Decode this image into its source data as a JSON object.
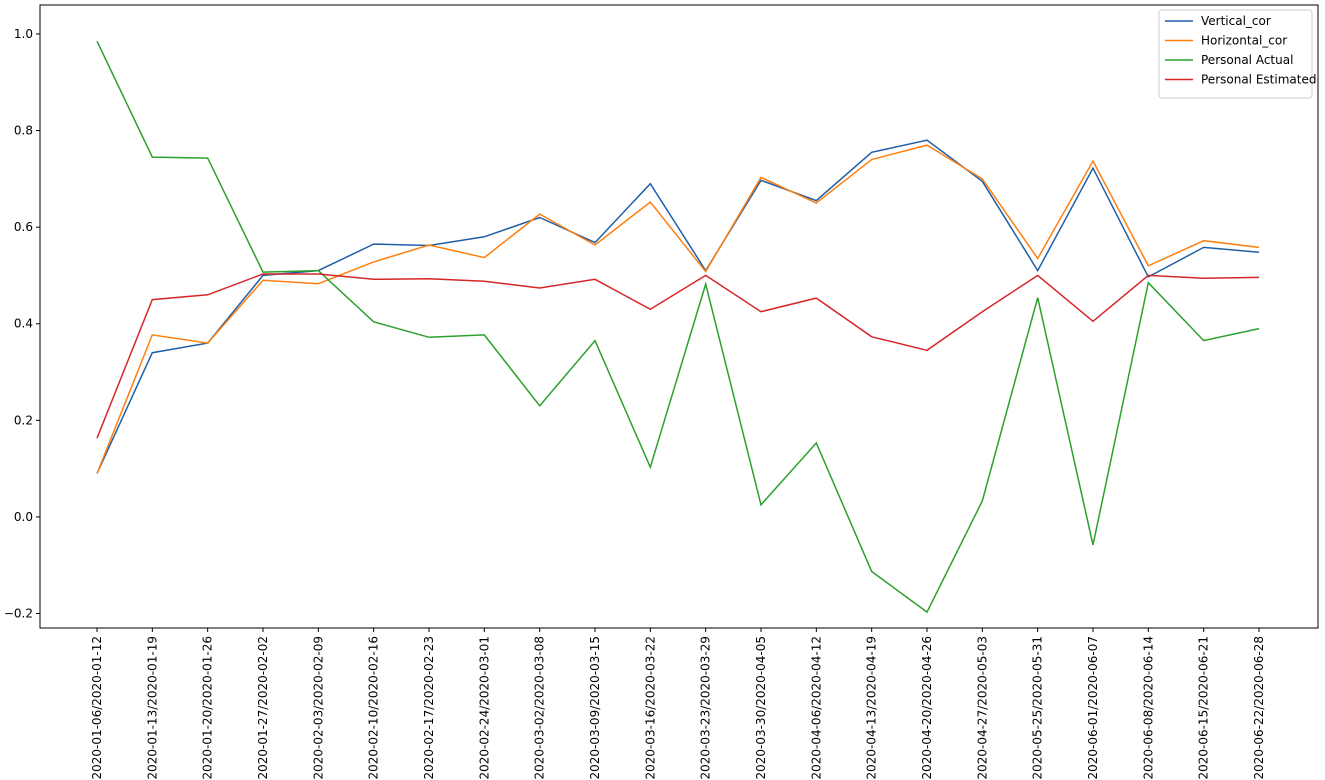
{
  "chart_data": {
    "type": "line",
    "title": "",
    "xlabel": "",
    "ylabel": "",
    "ylim": [
      -0.23,
      1.06
    ],
    "yticks": [
      -0.2,
      0.0,
      0.2,
      0.4,
      0.6,
      0.8,
      1.0
    ],
    "ytick_labels": [
      "−0.2",
      "0.0",
      "0.2",
      "0.4",
      "0.6",
      "0.8",
      "1.0"
    ],
    "grid": false,
    "legend_position": "top-right",
    "categories": [
      "2020-01-06/2020-01-12",
      "2020-01-13/2020-01-19",
      "2020-01-20/2020-01-26",
      "2020-01-27/2020-02-02",
      "2020-02-03/2020-02-09",
      "2020-02-10/2020-02-16",
      "2020-02-17/2020-02-23",
      "2020-02-24/2020-03-01",
      "2020-03-02/2020-03-08",
      "2020-03-09/2020-03-15",
      "2020-03-16/2020-03-22",
      "2020-03-23/2020-03-29",
      "2020-03-30/2020-04-05",
      "2020-04-06/2020-04-12",
      "2020-04-13/2020-04-19",
      "2020-04-20/2020-04-26",
      "2020-04-27/2020-05-03",
      "2020-05-25/2020-05-31",
      "2020-06-01/2020-06-07",
      "2020-06-08/2020-06-14",
      "2020-06-15/2020-06-21",
      "2020-06-22/2020-06-28"
    ],
    "series": [
      {
        "name": "Vertical_cor",
        "color": "#1f5fa8",
        "values": [
          0.09,
          0.34,
          0.36,
          0.5,
          0.51,
          0.565,
          0.562,
          0.58,
          0.62,
          0.568,
          0.69,
          0.51,
          0.697,
          0.655,
          0.755,
          0.78,
          0.695,
          0.51,
          0.722,
          0.497,
          0.558,
          0.548
        ]
      },
      {
        "name": "Horizontal_cor",
        "color": "#ff7f0e",
        "values": [
          0.09,
          0.377,
          0.36,
          0.49,
          0.483,
          0.528,
          0.563,
          0.537,
          0.627,
          0.563,
          0.652,
          0.508,
          0.703,
          0.65,
          0.74,
          0.77,
          0.7,
          0.535,
          0.737,
          0.52,
          0.572,
          0.558
        ]
      },
      {
        "name": "Personal Actual",
        "color": "#2ca02c",
        "values": [
          0.985,
          0.745,
          0.743,
          0.507,
          0.51,
          0.404,
          0.372,
          0.377,
          0.23,
          0.365,
          0.103,
          0.482,
          0.025,
          0.153,
          -0.113,
          -0.197,
          0.033,
          0.454,
          -0.058,
          0.485,
          0.365,
          0.39
        ]
      },
      {
        "name": "Personal Estimated",
        "color": "#d62728",
        "values": [
          0.163,
          0.45,
          0.46,
          0.503,
          0.503,
          0.492,
          0.493,
          0.488,
          0.474,
          0.492,
          0.43,
          0.5,
          0.425,
          0.453,
          0.373,
          0.345,
          0.425,
          0.5,
          0.405,
          0.5,
          0.494,
          0.496
        ]
      }
    ]
  }
}
